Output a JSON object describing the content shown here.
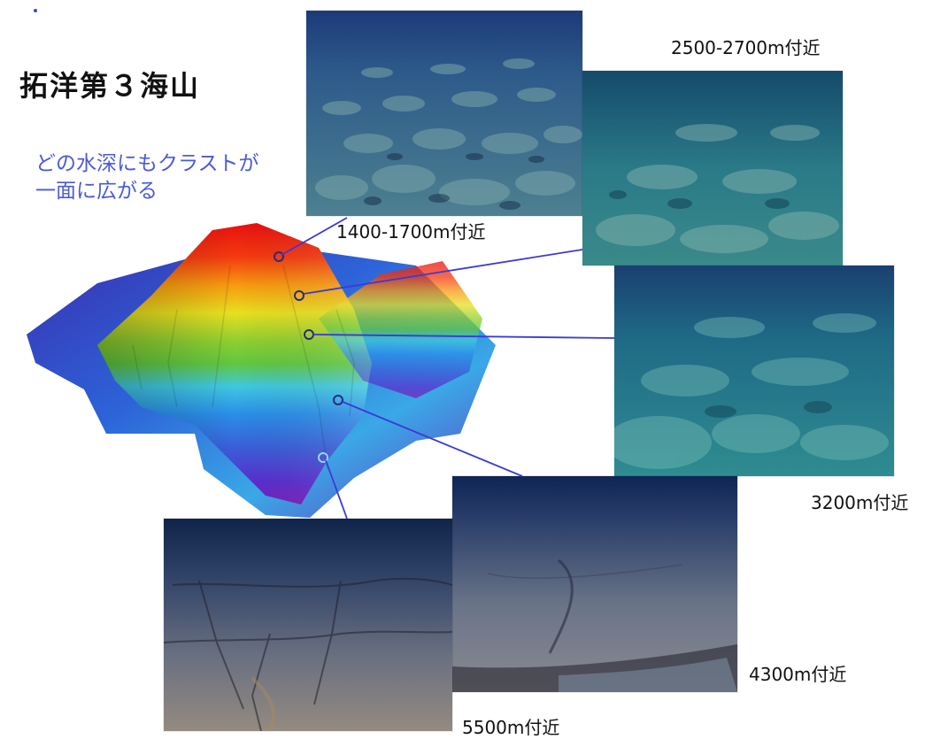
{
  "title": "拓洋第３海山",
  "subtitle": "どの水深にもクラストが一面に広がる",
  "depth_labels": {
    "d1": "1400-1700m付近",
    "d2": "2500-2700m付近",
    "d3": "3200m付近",
    "d4": "4300m付近",
    "d5": "5500m付近"
  },
  "colors": {
    "subtitle": "#4a5ad8",
    "connector": "#3a3ad8"
  }
}
